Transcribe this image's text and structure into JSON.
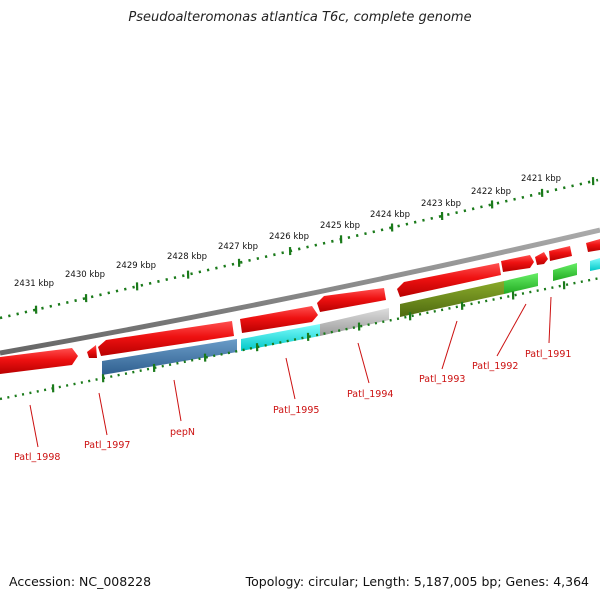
{
  "title": "Pseudoalteromonas atlantica T6c, complete genome",
  "footer": {
    "accession": "Accession: NC_008228",
    "stats": "Topology: circular; Length: 5,187,005 bp; Genes: 4,364"
  },
  "scale_labels": [
    "2421 kbp",
    "2422 kbp",
    "2423 kbp",
    "2424 kbp",
    "2425 kbp",
    "2426 kbp",
    "2427 kbp",
    "2428 kbp",
    "2429 kbp",
    "2430 kbp",
    "2431 kbp"
  ],
  "gene_labels": [
    "Patl_1991",
    "Patl_1992",
    "Patl_1993",
    "Patl_1994",
    "Patl_1995",
    "pepN",
    "Patl_1997",
    "Patl_1998"
  ],
  "colors": {
    "backbone": "#8a8a8a",
    "forward_strand": "#ee1111",
    "tick": "#1a7a1a",
    "label": "#cc1111",
    "feature_steelblue": "#4a7fb0",
    "feature_cyan": "#11eeee",
    "feature_gray": "#b8b8b8",
    "feature_olive": "#6a8a1a",
    "feature_green": "#33cc33"
  }
}
